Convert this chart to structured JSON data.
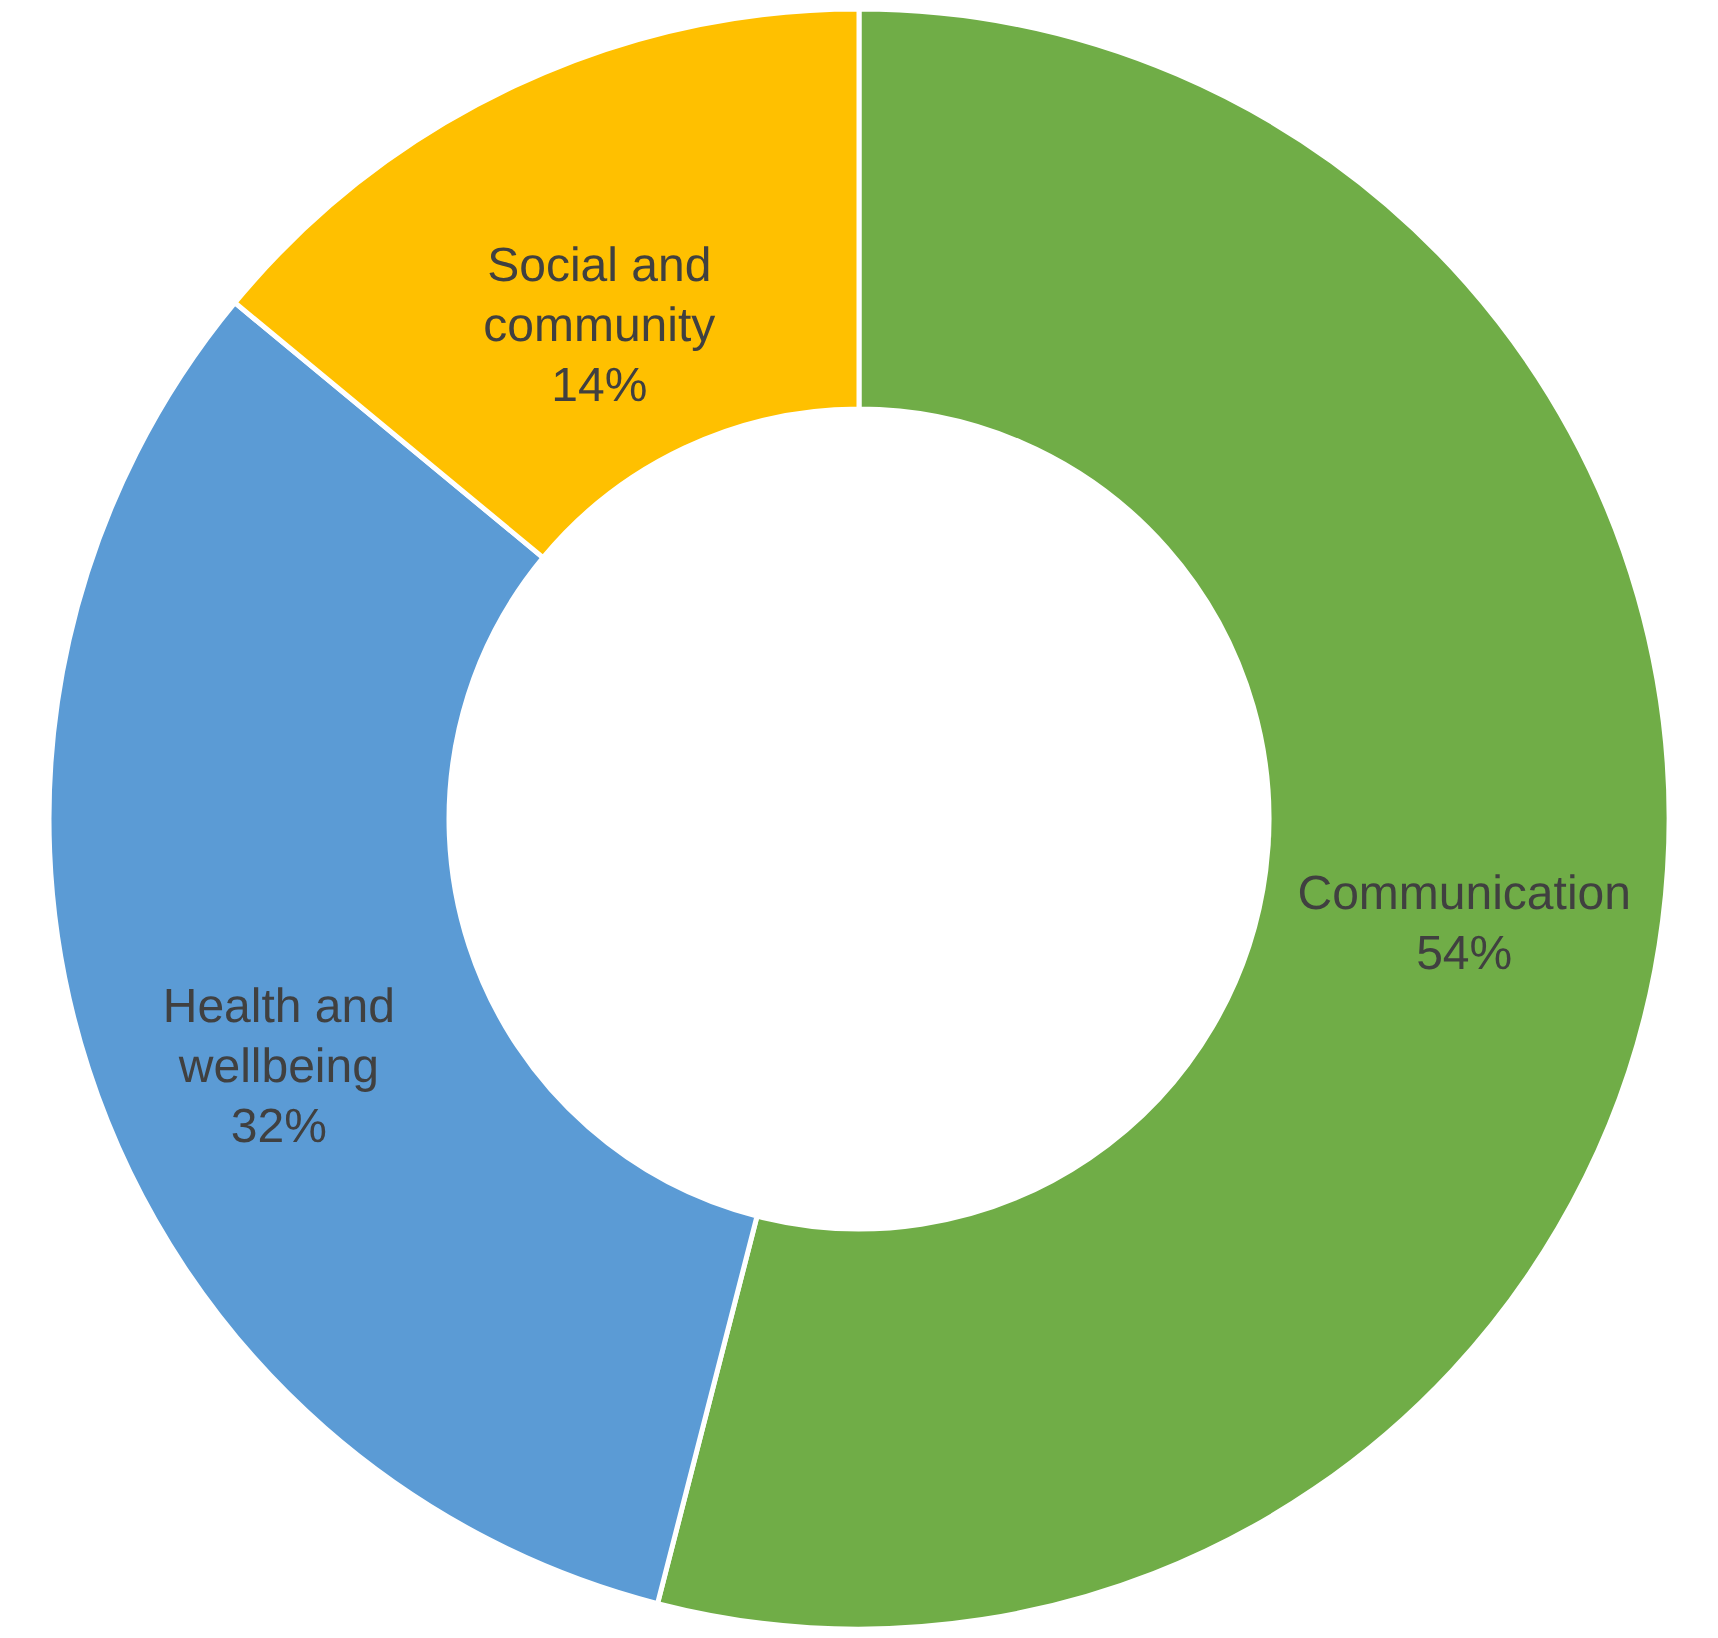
{
  "chart_data": {
    "type": "donut",
    "categories": [
      "Communication",
      "Health and wellbeing",
      "Social and community"
    ],
    "values": [
      54,
      32,
      14
    ],
    "colors": [
      "#70ad47",
      "#5b9bd5",
      "#ffc000"
    ],
    "value_labels": [
      "54%",
      "32%",
      "14%"
    ]
  }
}
